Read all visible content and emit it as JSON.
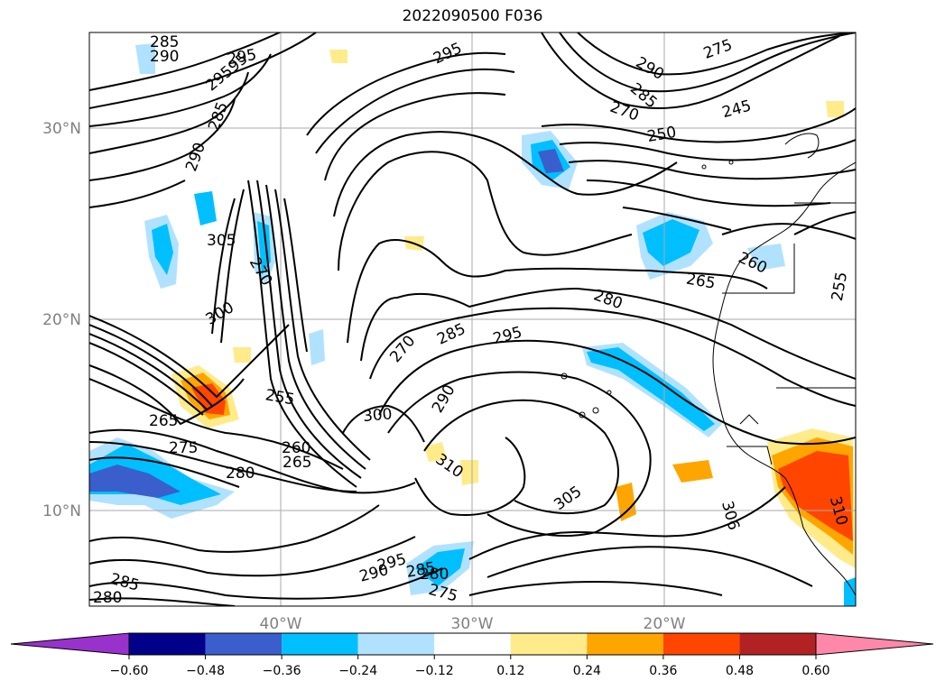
{
  "title": "2022090500 F036",
  "map": {
    "lat_labels": [
      "30°N",
      "20°N",
      "10°N"
    ],
    "lon_labels": [
      "40°W",
      "30°W",
      "20°W"
    ],
    "contour_labels": [
      "285",
      "290",
      "29595",
      "295",
      "285",
      "290",
      "295",
      "275",
      "290",
      "285",
      "270",
      "245",
      "250",
      "305",
      "300",
      "270",
      "260",
      "265",
      "255",
      "280",
      "285",
      "295",
      "270",
      "290",
      "265",
      "255",
      "300",
      "275",
      "260",
      "265",
      "280",
      "310",
      "305",
      "306",
      "310",
      "295",
      "290",
      "285",
      "280",
      "275",
      "285",
      "280",
      "275",
      "255",
      "260"
    ]
  },
  "colorbar": {
    "tick_labels": [
      "−0.60",
      "−0.48",
      "−0.36",
      "−0.24",
      "−0.12",
      "0.12",
      "0.24",
      "0.36",
      "0.48",
      "0.60"
    ],
    "colors": [
      "#9932cc",
      "#00008b",
      "#3a5fcd",
      "#00bfff",
      "#b0e2ff",
      "#ffffff",
      "#ffeb8a",
      "#ffa500",
      "#ff4500",
      "#b22222",
      "#ff88aa"
    ]
  }
}
